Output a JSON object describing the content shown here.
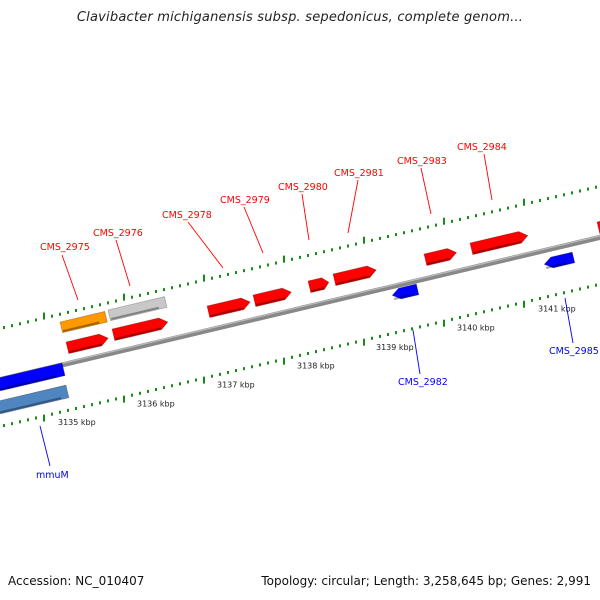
{
  "title": "Clavibacter michiganensis subsp. sepedonicus, complete genom...",
  "accession": "Accession: NC_010407",
  "summary": "Topology: circular; Length: 3,258,645 bp; Genes: 2,991",
  "colors": {
    "forward_gene": "#ff0000",
    "reverse_gene": "#0000ff",
    "orange_feature": "#ff9900",
    "grey_feature": "#c8c8c8",
    "steel_feature": "#4f86c0",
    "backbone": "#777777",
    "tick": "#1a8a1a"
  },
  "ruler": {
    "labels": [
      "3135 kbp",
      "3136 kbp",
      "3137 kbp",
      "3138 kbp",
      "3139 kbp",
      "3140 kbp",
      "3141 kbp"
    ]
  },
  "genes_forward": [
    {
      "name": "CMS_2975"
    },
    {
      "name": "CMS_2976"
    },
    {
      "name": "CMS_2978"
    },
    {
      "name": "CMS_2979"
    },
    {
      "name": "CMS_2980"
    },
    {
      "name": "CMS_2981"
    },
    {
      "name": "CMS_2983"
    },
    {
      "name": "CMS_2984"
    }
  ],
  "genes_reverse": [
    {
      "name": "CMS_2982"
    },
    {
      "name": "CMS_2985"
    },
    {
      "name": "mmuM"
    }
  ]
}
